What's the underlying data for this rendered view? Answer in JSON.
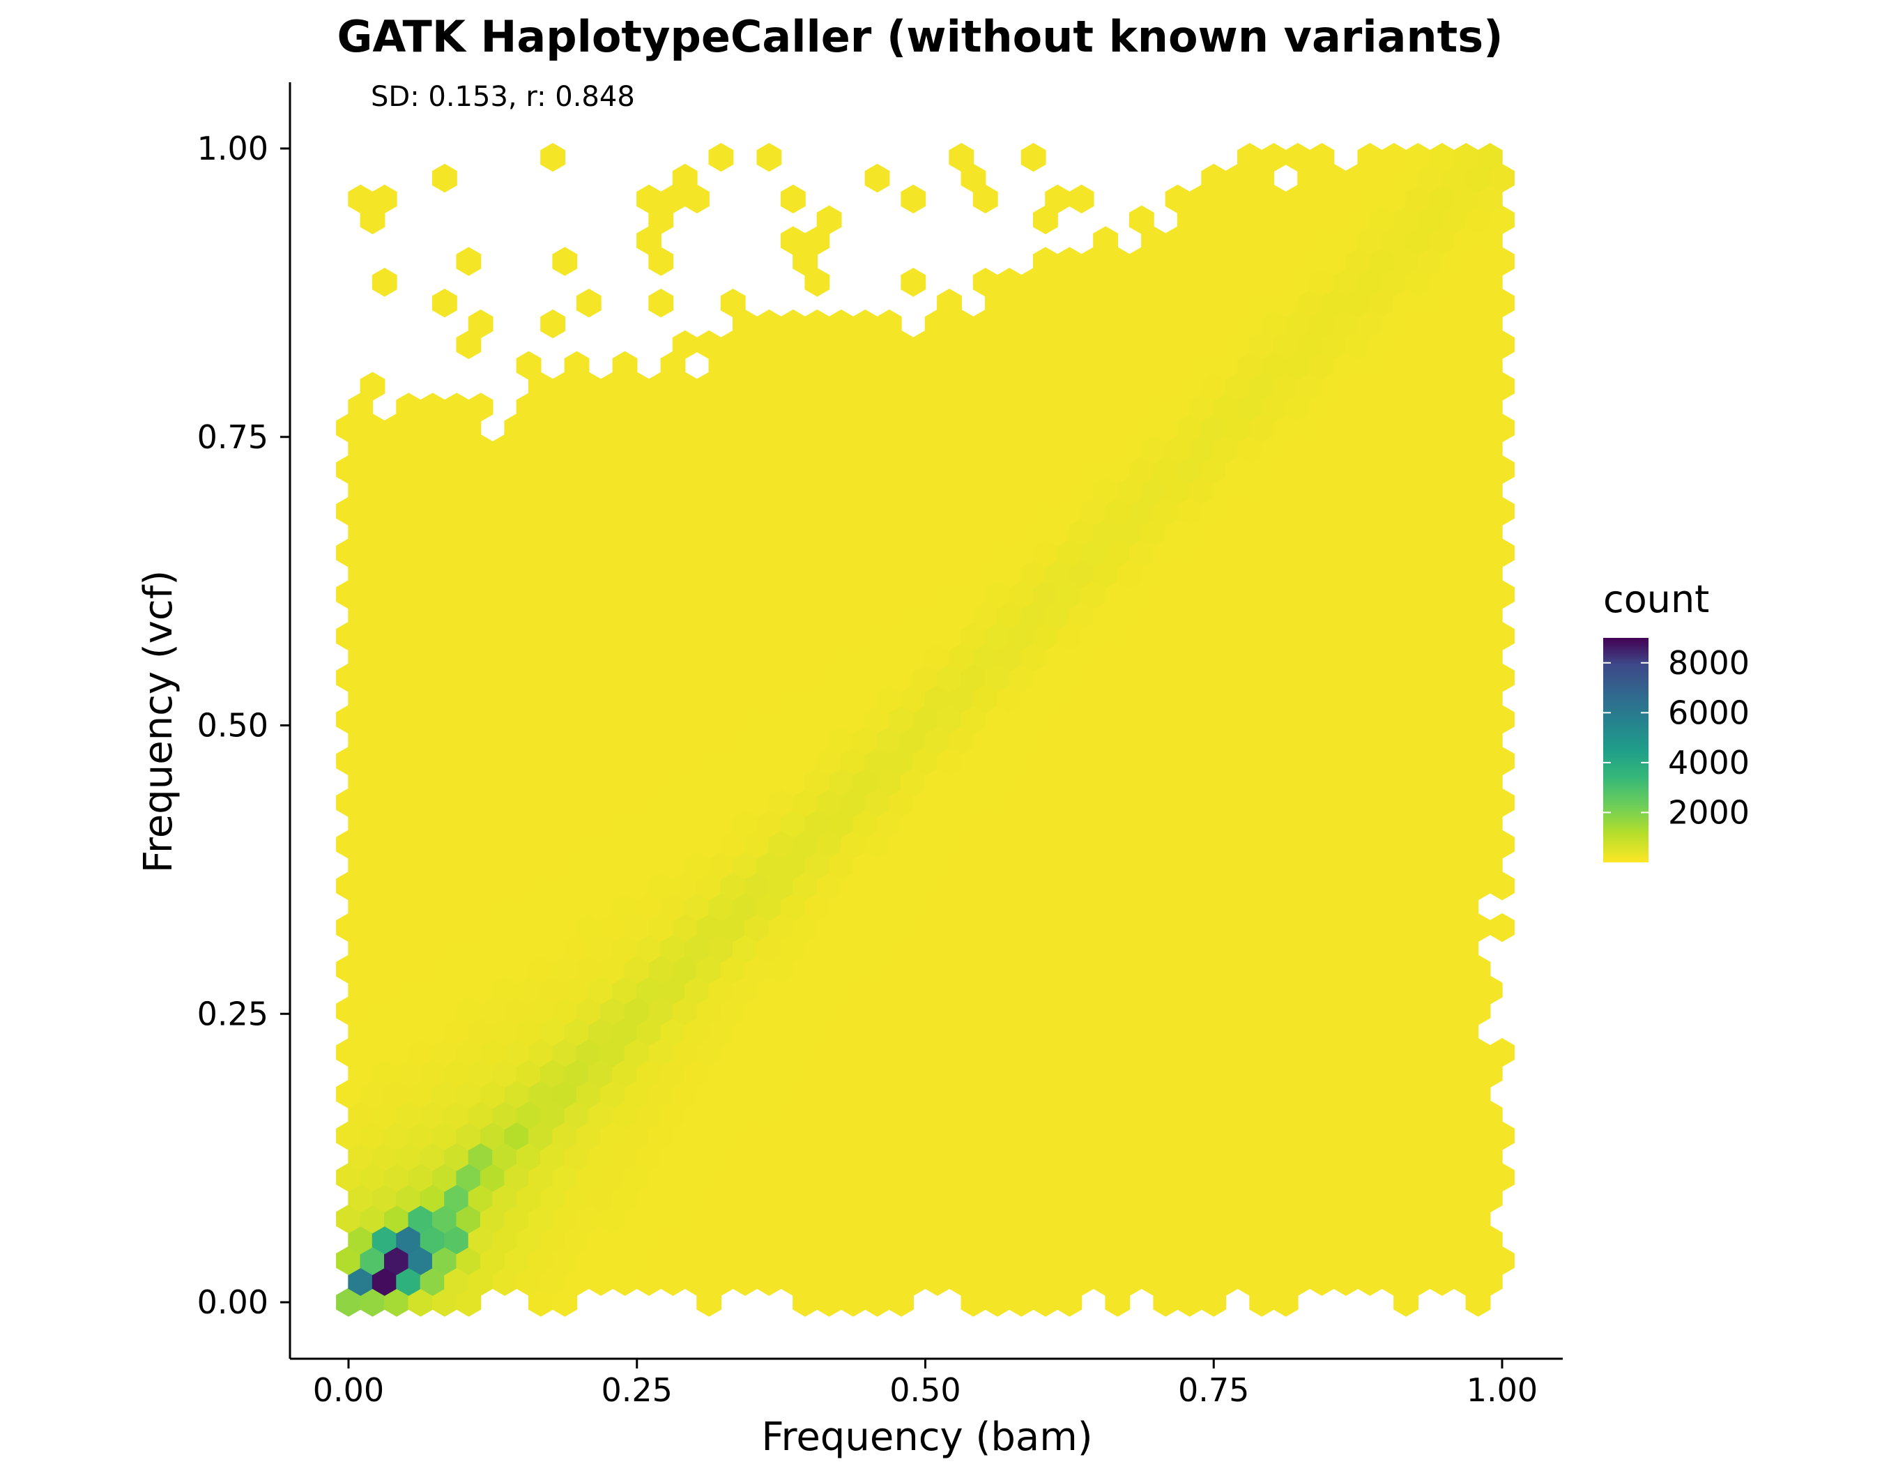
{
  "chart_data": {
    "type": "heatmap",
    "subtype": "hexbin",
    "title": "GATK HaplotypeCaller (without known variants)",
    "annotation": "SD: 0.153, r: 0.848",
    "xlabel": "Frequency (bam)",
    "ylabel": "Frequency (vcf)",
    "xlim": [
      -0.1,
      1.1
    ],
    "ylim": [
      -0.1,
      1.1
    ],
    "xticks": [
      "0.00",
      "0.25",
      "0.50",
      "0.75",
      "1.00"
    ],
    "yticks": [
      "0.00",
      "0.25",
      "0.50",
      "0.75",
      "1.00"
    ],
    "xtick_values": [
      0,
      0.25,
      0.5,
      0.75,
      1.0
    ],
    "ytick_values": [
      0,
      0.25,
      0.5,
      0.75,
      1.0
    ],
    "grid": false,
    "colormap": "viridis (reversed: low=yellow, high=purple)",
    "colors": {
      "low": "#fde725",
      "mid_low": "#a0da39",
      "mid": "#22a884",
      "mid_high": "#3b528b",
      "high": "#440154"
    },
    "legend": {
      "title": "count",
      "position": "right",
      "ticks": [
        "8000",
        "6000",
        "4000",
        "2000"
      ],
      "tick_values": [
        8000,
        6000,
        4000,
        2000
      ],
      "range": [
        0,
        9000
      ]
    },
    "hotspots": [
      {
        "x": 0.03,
        "y": 0.02,
        "count": 9000
      },
      {
        "x": 0.04,
        "y": 0.035,
        "count": 8800
      },
      {
        "x": 0.015,
        "y": 0.02,
        "count": 6500
      },
      {
        "x": 0.055,
        "y": 0.055,
        "count": 6200
      },
      {
        "x": 0.065,
        "y": 0.035,
        "count": 6000
      },
      {
        "x": 0.03,
        "y": 0.045,
        "count": 5000
      },
      {
        "x": 0.08,
        "y": 0.06,
        "count": 4000
      },
      {
        "x": 0.05,
        "y": 0.02,
        "count": 3800
      },
      {
        "x": 0.09,
        "y": 0.08,
        "count": 3500
      },
      {
        "x": 0.1,
        "y": 0.1,
        "count": 2600
      },
      {
        "x": 0.09,
        "y": 0.05,
        "count": 3000
      },
      {
        "x": 0.06,
        "y": 0.07,
        "count": 3200
      },
      {
        "x": 0.015,
        "y": 0.04,
        "count": 2800
      },
      {
        "x": 0.12,
        "y": 0.12,
        "count": 2000
      },
      {
        "x": 0.14,
        "y": 0.14,
        "count": 1400
      }
    ]
  }
}
